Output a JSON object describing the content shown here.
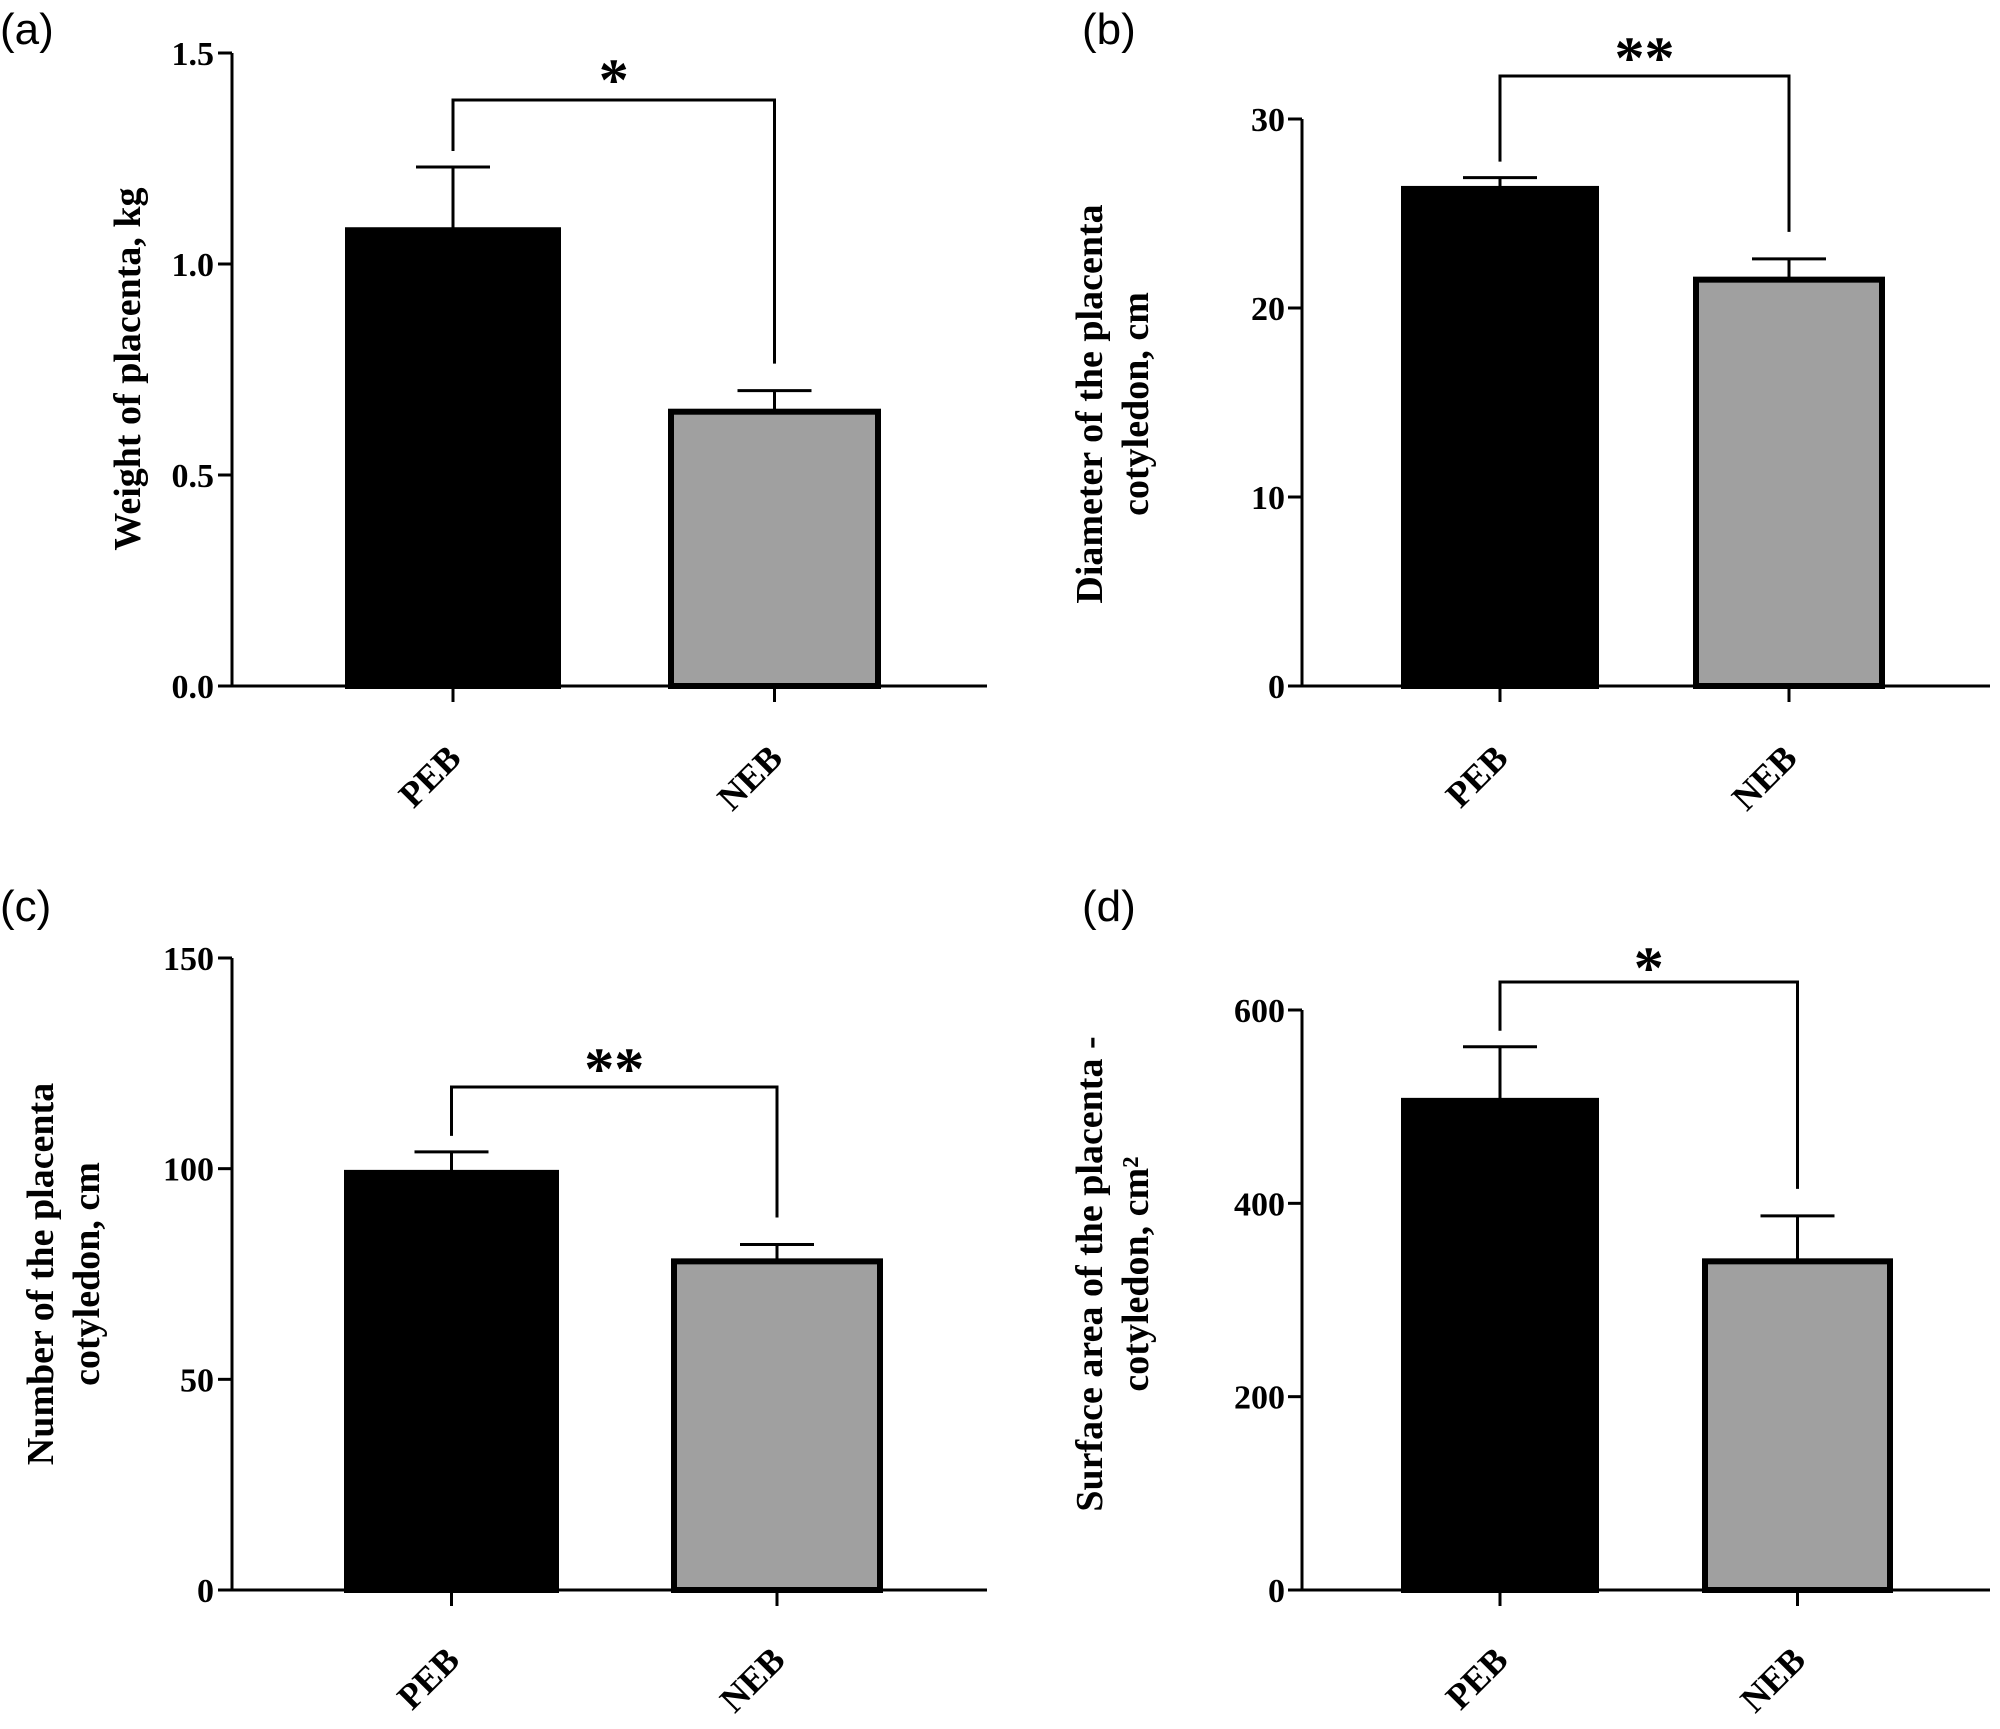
{
  "figure": {
    "colors": {
      "PEB": "#000000",
      "NEB": "#a0a0a0",
      "axis": "#000000"
    }
  },
  "chart_data": [
    {
      "panel": "(a)",
      "type": "bar",
      "categories": [
        "PEB",
        "NEB"
      ],
      "values": [
        1.08,
        0.65
      ],
      "error": [
        0.15,
        0.05
      ],
      "ylabel": "Weight of placenta, kg",
      "ylim": [
        0,
        1.5
      ],
      "yticks": [
        0,
        0.5,
        1.0,
        1.5
      ],
      "ytick_labels": [
        "0.0",
        "0.5",
        "1.0",
        "1.5"
      ],
      "significance": "*"
    },
    {
      "panel": "(b)",
      "type": "bar",
      "categories": [
        "PEB",
        "NEB"
      ],
      "values": [
        26.3,
        21.5
      ],
      "error": [
        0.6,
        1.1
      ],
      "ylabel": [
        "Diameter of the placenta",
        "cotyledon, cm"
      ],
      "ylim": [
        0,
        30
      ],
      "yticks": [
        0,
        10,
        20,
        30
      ],
      "ytick_labels": [
        "0",
        "10",
        "20",
        "30"
      ],
      "significance": "**"
    },
    {
      "panel": "(c)",
      "type": "bar",
      "categories": [
        "PEB",
        "NEB"
      ],
      "values": [
        99,
        78
      ],
      "error": [
        5,
        4
      ],
      "ylabel": [
        "Number of the placenta",
        "cotyledon, cm"
      ],
      "ylim": [
        0,
        150
      ],
      "yticks": [
        0,
        50,
        100,
        150
      ],
      "ytick_labels": [
        "0",
        "50",
        "100",
        "150"
      ],
      "significance": "**"
    },
    {
      "panel": "(d)",
      "type": "bar",
      "categories": [
        "PEB",
        "NEB"
      ],
      "values": [
        506,
        340
      ],
      "error": [
        56,
        47
      ],
      "ylabel": [
        "Surface area of the placenta -",
        "cotyledon, cm²"
      ],
      "ylim": [
        0,
        600
      ],
      "yticks": [
        0,
        200,
        400,
        600
      ],
      "ytick_labels": [
        "0",
        "200",
        "400",
        "600"
      ],
      "significance": "*"
    }
  ]
}
